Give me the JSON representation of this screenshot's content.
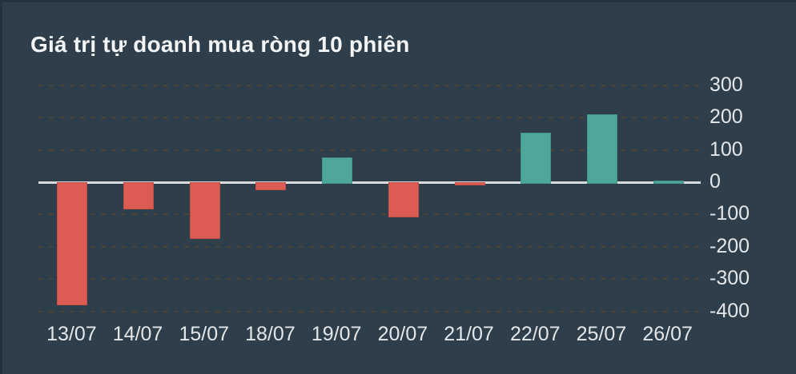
{
  "header": {
    "title": "Giá trị tự doanh mua ròng 10 phiên"
  },
  "chart_data": {
    "type": "bar",
    "title": "Giá trị tự doanh mua ròng 10 phiên",
    "categories": [
      "13/07",
      "14/07",
      "15/07",
      "18/07",
      "19/07",
      "20/07",
      "21/07",
      "22/07",
      "25/07",
      "26/07"
    ],
    "values": [
      -375,
      -80,
      -170,
      -20,
      77,
      -104,
      -5,
      153,
      210,
      4
    ],
    "xlabel": "",
    "ylabel": "",
    "y_ticks": [
      300,
      200,
      100,
      0,
      -100,
      -200,
      -300,
      -400
    ],
    "ylim": [
      -430,
      330
    ],
    "grid": "horizontal-dashed",
    "zero_line": "solid",
    "legend_position": "none",
    "colors": {
      "positive": "#4FA79A",
      "negative": "#DC5B53"
    }
  },
  "theme": {
    "background": "#2F3E4B",
    "title_color": "#F2F4F5",
    "axis_label_color": "#E3E7E9",
    "zero_line_color": "#D8DBDD",
    "grid_color": "#4B4336"
  }
}
